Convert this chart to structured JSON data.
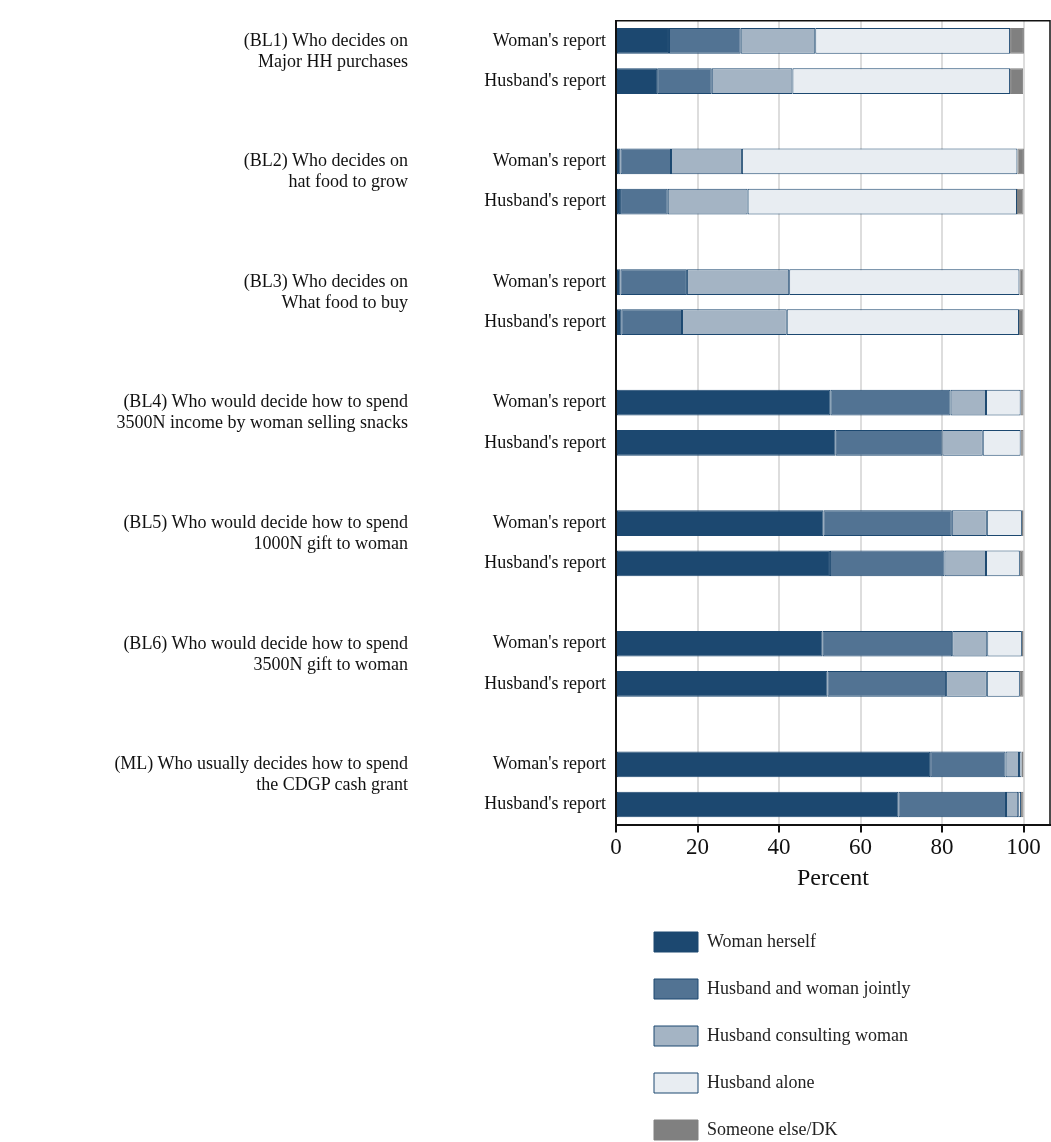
{
  "chart_data": {
    "type": "bar",
    "orientation": "horizontal",
    "stacked": true,
    "categories": [
      "Woman's report",
      "Husband's report",
      null,
      "Woman's report",
      "Husband's report",
      null,
      "Woman's report",
      "Husband's report",
      null,
      "Woman's report",
      "Husband's report",
      null,
      "Woman's report",
      "Husband's report",
      null,
      "Woman's report",
      "Husband's report",
      null,
      "Woman's report",
      "Husband's report"
    ],
    "series": [
      {
        "name": "Woman herself",
        "color": "#1c4870",
        "values": [
          13.0,
          10.1,
          null,
          1.1,
          1.0,
          null,
          1.1,
          1.3,
          null,
          52.6,
          53.9,
          null,
          50.9,
          52.5,
          null,
          50.7,
          51.9,
          null,
          77.1,
          69.3
        ]
      },
      {
        "name": "Husband and woman jointly",
        "color": "#527393",
        "values": [
          17.6,
          13.4,
          null,
          12.4,
          11.7,
          null,
          16.3,
          14.9,
          null,
          29.5,
          26.2,
          null,
          31.5,
          28.1,
          null,
          31.8,
          29.1,
          null,
          18.5,
          26.4
        ]
      },
      {
        "name": "Husband consulting woman",
        "color": "#a4b4c4",
        "values": [
          18.3,
          19.8,
          null,
          17.4,
          19.6,
          null,
          25.1,
          25.7,
          null,
          8.7,
          9.9,
          null,
          8.6,
          10.2,
          null,
          8.6,
          10.0,
          null,
          3.3,
          3.0
        ]
      },
      {
        "name": "Husband alone",
        "color": "#e8edf2",
        "values": [
          47.8,
          53.4,
          null,
          67.6,
          66.1,
          null,
          56.5,
          57.0,
          null,
          8.5,
          9.3,
          null,
          8.6,
          8.3,
          null,
          8.5,
          8.1,
          null,
          0.6,
          0.7
        ]
      },
      {
        "name": "Someone else/DK",
        "color": "#808080",
        "values": [
          3.4,
          3.2,
          null,
          1.6,
          1.6,
          null,
          1.0,
          1.1,
          null,
          0.7,
          0.7,
          null,
          0.4,
          0.9,
          null,
          0.4,
          0.9,
          null,
          0.5,
          0.6
        ]
      }
    ],
    "xlim": [
      0,
      106.5
    ],
    "xticks": [
      0,
      20,
      40,
      60,
      80,
      100
    ],
    "xlabel": "Percent",
    "grid": "x",
    "legend": "bottom",
    "annotations": [
      "(BL1) Who decides on\nMajor HH purchases",
      "(BL2) Who decides on\nhat food to grow",
      "(BL3) Who decides on\nWhat food to buy",
      "(BL4) Who would decide how to spend\n3500N income by woman selling snacks",
      "(BL5) Who would decide how to spend\n1000N gift to woman",
      "(BL6) Who would decide how to spend\n3500N gift to woman",
      "(ML) Who usually decides how to spend\nthe CDGP cash grant"
    ]
  }
}
